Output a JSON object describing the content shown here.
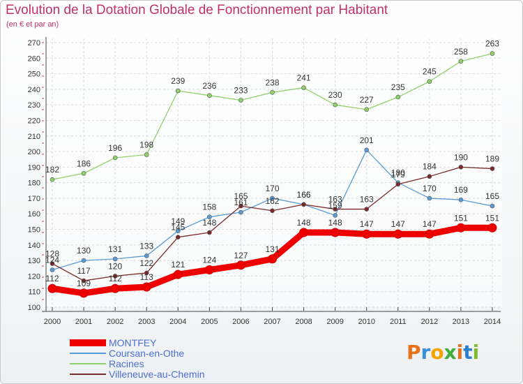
{
  "header": {
    "title": "Evolution de la Dotation Globale de Fonctionnement par Habitant",
    "subtitle": "(en € et par an)"
  },
  "logo": {
    "text": "Proxiti",
    "letter_colors": [
      "#e8721c",
      "#3a8fd6",
      "#f4a400",
      "#3fae3a",
      "#e8721c",
      "#2f7fd0",
      "#7cbf2a"
    ]
  },
  "colors": {
    "title": "#c0306a",
    "grid": "#d6dade",
    "axis": "#444444",
    "legend_text": "#4a6fd0"
  },
  "chart_data": {
    "type": "line",
    "title": "Evolution de la Dotation Globale de Fonctionnement par Habitant",
    "subtitle": "(en € et par an)",
    "xlabel": "",
    "ylabel": "",
    "x": [
      "2000",
      "2001",
      "2002",
      "2003",
      "2004",
      "2005",
      "2006",
      "2007",
      "2008",
      "2009",
      "2010",
      "2011",
      "2012",
      "2013",
      "2014"
    ],
    "ylim": [
      100,
      270
    ],
    "yticks": [
      100,
      110,
      120,
      130,
      140,
      150,
      160,
      170,
      180,
      190,
      200,
      210,
      220,
      230,
      240,
      250,
      260,
      270
    ],
    "grid": true,
    "legend_position": "bottom-left",
    "series": [
      {
        "name": "MONTFEY",
        "color": "#ee0000",
        "values": [
          112,
          109,
          112,
          113,
          121,
          124,
          127,
          131,
          148,
          148,
          147,
          147,
          147,
          151,
          151
        ],
        "labels": [
          "112",
          "109",
          "112",
          "113",
          "121",
          "124",
          "127",
          "131",
          "148",
          "148",
          "147",
          "147",
          "147",
          "151",
          "151"
        ]
      },
      {
        "name": "Coursan-en-Othe",
        "color": "#5b9bd5",
        "values": [
          124,
          130,
          131,
          133,
          149,
          158,
          161,
          170,
          166,
          159,
          201,
          180,
          170,
          169,
          165
        ],
        "labels": [
          "124",
          "130",
          "131",
          "133",
          "149",
          "158",
          "161",
          "170",
          "166",
          "159",
          "201",
          "180",
          "170",
          "169",
          "165"
        ]
      },
      {
        "name": "Racines",
        "color": "#8fd16a",
        "values": [
          182,
          186,
          196,
          198,
          239,
          236,
          233,
          238,
          241,
          230,
          227,
          235,
          245,
          258,
          263
        ],
        "labels": [
          "182",
          "186",
          "196",
          "198",
          "239",
          "236",
          "233",
          "238",
          "241",
          "230",
          "227",
          "235",
          "245",
          "258",
          "263"
        ]
      },
      {
        "name": "Villeneuve-au-Chemin",
        "color": "#7a2a2a",
        "values": [
          128,
          117,
          120,
          122,
          145,
          148,
          165,
          162,
          166,
          163,
          163,
          179,
          184,
          190,
          189
        ],
        "labels": [
          "128",
          "117",
          "120",
          "122",
          "145",
          "148",
          "165",
          "162",
          "166",
          "163",
          "163",
          "179",
          "184",
          "190",
          "189"
        ]
      }
    ]
  }
}
